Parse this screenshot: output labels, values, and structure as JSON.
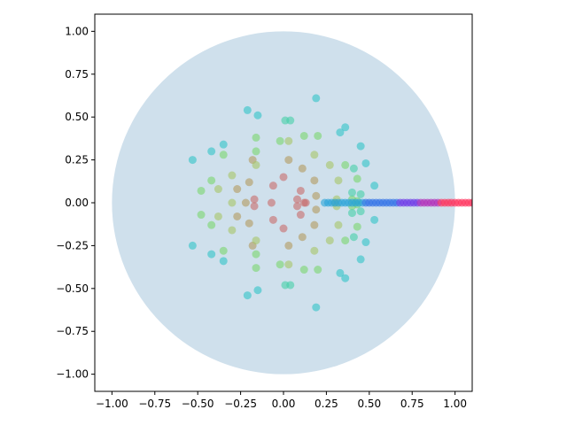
{
  "chart_data": {
    "type": "scatter",
    "title": "",
    "xlabel": "",
    "ylabel": "",
    "xlim": [
      -1.1,
      1.1
    ],
    "ylim": [
      -1.1,
      1.1
    ],
    "grid": false,
    "xticks": [
      "−1.00",
      "−0.75",
      "−0.50",
      "−0.25",
      "0.00",
      "0.25",
      "0.50",
      "0.75",
      "1.00"
    ],
    "yticks": [
      "1.00",
      "0.75",
      "0.50",
      "0.25",
      "0.00",
      "−0.25",
      "−0.50",
      "−0.75",
      "−1.00"
    ],
    "xtick_values": [
      -1.0,
      -0.75,
      -0.5,
      -0.25,
      0.0,
      0.25,
      0.5,
      0.75,
      1.0
    ],
    "ytick_values": [
      1.0,
      0.75,
      0.5,
      0.25,
      0.0,
      -0.25,
      -0.5,
      -0.75,
      -1.0
    ],
    "unit_circle": {
      "center": [
        0,
        0
      ],
      "radius": 1.0,
      "color": "#cfe0ec"
    },
    "point_opacity": 0.6,
    "series": [
      {
        "color": "#c86a6a",
        "points": [
          [
            0.08,
            0.02
          ],
          [
            0.08,
            -0.02
          ],
          [
            0.1,
            0.07
          ],
          [
            0.1,
            -0.07
          ],
          [
            0.0,
            0.15
          ],
          [
            0.0,
            -0.15
          ],
          [
            -0.06,
            0.1
          ],
          [
            -0.06,
            -0.1
          ],
          [
            -0.07,
            0.0
          ],
          [
            -0.17,
            0.02
          ],
          [
            -0.17,
            -0.02
          ],
          [
            0.12,
            0.0
          ],
          [
            0.13,
            0.0
          ]
        ]
      },
      {
        "color": "#b39a5f",
        "points": [
          [
            0.18,
            0.13
          ],
          [
            0.18,
            -0.13
          ],
          [
            0.19,
            0.04
          ],
          [
            0.19,
            -0.04
          ],
          [
            0.03,
            0.25
          ],
          [
            0.03,
            -0.25
          ],
          [
            0.11,
            0.2
          ],
          [
            0.11,
            -0.2
          ],
          [
            -0.2,
            0.12
          ],
          [
            -0.2,
            -0.12
          ],
          [
            -0.27,
            0.08
          ],
          [
            -0.27,
            -0.08
          ],
          [
            -0.18,
            0.25
          ],
          [
            -0.18,
            -0.25
          ],
          [
            -0.22,
            0.0
          ]
        ]
      },
      {
        "color": "#a6c468",
        "points": [
          [
            0.18,
            0.28
          ],
          [
            0.18,
            -0.28
          ],
          [
            0.3,
            0.0
          ],
          [
            0.31,
            0.02
          ],
          [
            0.31,
            -0.02
          ],
          [
            0.32,
            0.13
          ],
          [
            0.32,
            -0.13
          ],
          [
            0.27,
            0.22
          ],
          [
            0.27,
            -0.22
          ],
          [
            0.03,
            0.36
          ],
          [
            0.03,
            -0.36
          ],
          [
            -0.16,
            0.22
          ],
          [
            -0.16,
            -0.22
          ],
          [
            -0.3,
            0.16
          ],
          [
            -0.3,
            -0.16
          ],
          [
            -0.3,
            0.0
          ],
          [
            -0.38,
            0.08
          ],
          [
            -0.38,
            -0.08
          ]
        ]
      },
      {
        "color": "#79d66e",
        "points": [
          [
            0.2,
            0.39
          ],
          [
            0.2,
            -0.39
          ],
          [
            0.12,
            0.39
          ],
          [
            0.12,
            -0.39
          ],
          [
            -0.02,
            0.36
          ],
          [
            -0.02,
            -0.36
          ],
          [
            -0.16,
            0.38
          ],
          [
            -0.16,
            -0.38
          ],
          [
            -0.16,
            0.3
          ],
          [
            -0.16,
            -0.3
          ],
          [
            -0.35,
            0.28
          ],
          [
            -0.35,
            -0.28
          ],
          [
            -0.42,
            0.13
          ],
          [
            -0.42,
            -0.13
          ],
          [
            -0.48,
            0.07
          ],
          [
            -0.48,
            -0.07
          ],
          [
            0.36,
            0.22
          ],
          [
            0.36,
            -0.22
          ],
          [
            0.43,
            0.14
          ],
          [
            0.43,
            -0.14
          ],
          [
            0.4,
            0.02
          ],
          [
            0.4,
            -0.02
          ],
          [
            0.43,
            0.01
          ],
          [
            0.43,
            -0.01
          ]
        ]
      },
      {
        "color": "#45cfa8",
        "points": [
          [
            0.01,
            0.48
          ],
          [
            0.01,
            -0.48
          ],
          [
            0.04,
            0.48
          ],
          [
            0.04,
            -0.48
          ],
          [
            0.45,
            0.05
          ],
          [
            0.45,
            -0.05
          ],
          [
            0.4,
            0.06
          ],
          [
            0.4,
            -0.06
          ],
          [
            0.41,
            0.2
          ],
          [
            0.41,
            -0.2
          ]
        ]
      },
      {
        "color": "#31c3c8",
        "points": [
          [
            0.19,
            0.61
          ],
          [
            0.19,
            -0.61
          ],
          [
            -0.21,
            0.54
          ],
          [
            -0.21,
            -0.54
          ],
          [
            -0.15,
            0.51
          ],
          [
            -0.15,
            -0.51
          ],
          [
            0.36,
            0.44
          ],
          [
            0.36,
            -0.44
          ],
          [
            0.33,
            0.41
          ],
          [
            0.33,
            -0.41
          ],
          [
            0.45,
            0.33
          ],
          [
            0.45,
            -0.33
          ],
          [
            0.48,
            0.23
          ],
          [
            0.48,
            -0.23
          ],
          [
            0.53,
            0.1
          ],
          [
            0.53,
            -0.1
          ],
          [
            -0.53,
            0.25
          ],
          [
            -0.53,
            -0.25
          ],
          [
            -0.42,
            0.3
          ],
          [
            -0.42,
            -0.3
          ],
          [
            -0.35,
            0.34
          ],
          [
            -0.35,
            -0.34
          ]
        ]
      },
      {
        "color": "#2aa4d8",
        "points": [
          [
            0.24,
            0.0
          ],
          [
            0.26,
            0.0
          ],
          [
            0.28,
            0.0
          ],
          [
            0.3,
            0.0
          ],
          [
            0.32,
            0.0
          ],
          [
            0.34,
            0.0
          ],
          [
            0.36,
            0.0
          ],
          [
            0.38,
            0.0
          ],
          [
            0.4,
            0.0
          ],
          [
            0.42,
            0.0
          ],
          [
            0.44,
            0.0
          ],
          [
            0.46,
            0.0
          ]
        ]
      },
      {
        "color": "#2f6fe8",
        "points": [
          [
            0.48,
            0.0
          ],
          [
            0.5,
            0.0
          ],
          [
            0.52,
            0.0
          ],
          [
            0.54,
            0.0
          ],
          [
            0.56,
            0.0
          ],
          [
            0.58,
            0.0
          ],
          [
            0.6,
            0.0
          ],
          [
            0.62,
            0.0
          ],
          [
            0.64,
            0.0
          ],
          [
            0.66,
            0.0
          ]
        ]
      },
      {
        "color": "#6a35e8",
        "points": [
          [
            0.68,
            0.0
          ],
          [
            0.7,
            0.0
          ],
          [
            0.72,
            0.0
          ],
          [
            0.74,
            0.0
          ],
          [
            0.76,
            0.0
          ],
          [
            0.78,
            0.0
          ]
        ]
      },
      {
        "color": "#b02ab8",
        "points": [
          [
            0.8,
            0.0
          ],
          [
            0.82,
            0.0
          ],
          [
            0.84,
            0.0
          ],
          [
            0.86,
            0.0
          ],
          [
            0.88,
            0.0
          ],
          [
            0.9,
            0.0
          ]
        ]
      },
      {
        "color": "#ff2f5a",
        "points": [
          [
            0.92,
            0.0
          ],
          [
            0.94,
            0.0
          ],
          [
            0.96,
            0.0
          ],
          [
            0.98,
            0.0
          ],
          [
            1.0,
            0.0
          ],
          [
            1.02,
            0.0
          ],
          [
            1.04,
            0.0
          ],
          [
            1.06,
            0.0
          ],
          [
            1.08,
            0.0
          ],
          [
            1.1,
            0.0
          ]
        ]
      }
    ]
  }
}
